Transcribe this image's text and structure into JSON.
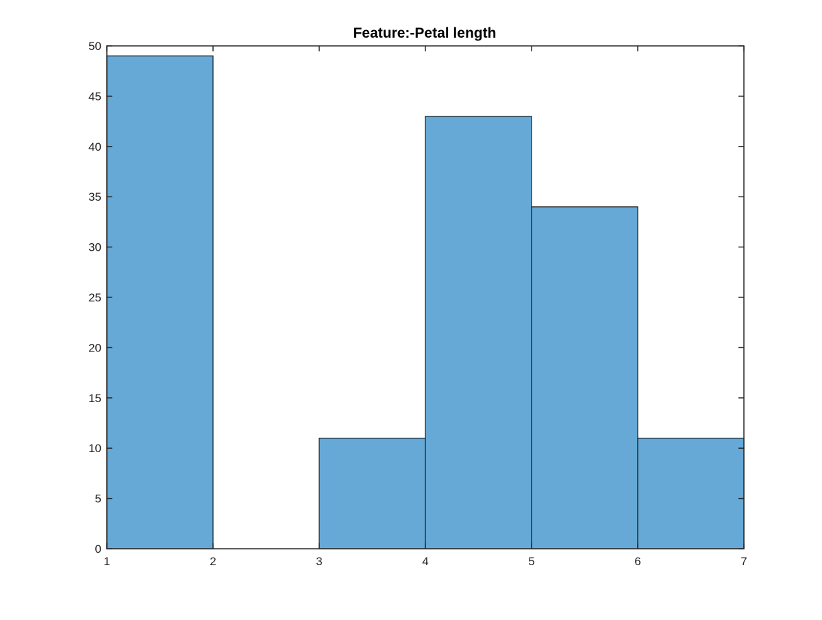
{
  "chart_data": {
    "type": "bar",
    "title": "Feature:-Petal length",
    "xlabel": "",
    "ylabel": "",
    "bin_edges": [
      1,
      2,
      3,
      4,
      5,
      6,
      7
    ],
    "values": [
      49,
      0,
      11,
      43,
      34,
      11
    ],
    "xlim": [
      1,
      7
    ],
    "ylim": [
      0,
      50
    ],
    "x_ticks": [
      "1",
      "2",
      "3",
      "4",
      "5",
      "6",
      "7"
    ],
    "y_ticks": [
      "0",
      "5",
      "10",
      "15",
      "20",
      "25",
      "30",
      "35",
      "40",
      "45",
      "50"
    ],
    "grid": false,
    "legend": "none",
    "bar_color": "#66a9d6",
    "edge_color": "#1a1a1a"
  }
}
